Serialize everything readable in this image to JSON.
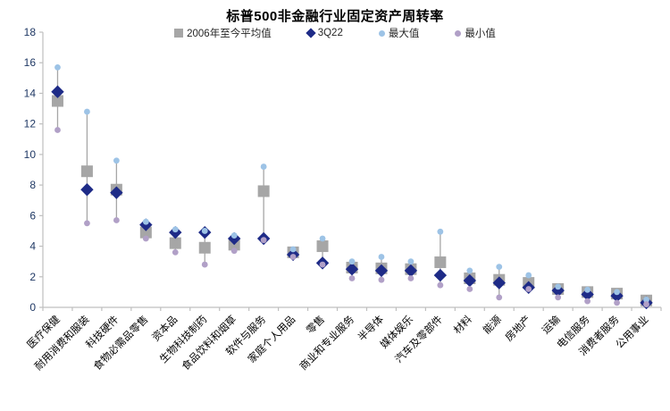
{
  "title": "标普500非金融行业固定资产周转率",
  "legend": [
    {
      "label": "2006年至今平均值",
      "marker": "square",
      "color": "#A6A6A6"
    },
    {
      "label": "3Q22",
      "marker": "diamond",
      "color": "#1E2B87"
    },
    {
      "label": "最大值",
      "marker": "dot",
      "color": "#9DC3E6"
    },
    {
      "label": "最小值",
      "marker": "dot",
      "color": "#B1A0C7"
    }
  ],
  "colors": {
    "mean_square": "#A6A6A6",
    "q3_diamond": "#1E2B87",
    "max_dot": "#9DC3E6",
    "min_dot": "#B1A0C7",
    "whisker": "#A6A6A6",
    "axis": "#BFBFBF",
    "y_tick_label": "#1F3864",
    "x_tick_label": "#000000"
  },
  "chart_data": {
    "type": "scatter",
    "title": "标普500非金融行业固定资产周转率",
    "categories": [
      "医疗保健",
      "耐用消费和服装",
      "科技硬件",
      "食物必需品零售",
      "资本品",
      "生物科技制药",
      "食品饮料和烟草",
      "软件与服务",
      "家庭个人用品",
      "零售",
      "商业和专业服务",
      "半导体",
      "媒体娱乐",
      "汽车及零部件",
      "材料",
      "能源",
      "房地产",
      "运输",
      "电信服务",
      "消费者服务",
      "公用事业"
    ],
    "series": [
      {
        "name": "2006年至今平均值",
        "marker": "square",
        "color": "#A6A6A6",
        "values": [
          13.5,
          8.9,
          7.7,
          4.9,
          4.2,
          3.9,
          4.1,
          7.6,
          3.6,
          4.0,
          2.6,
          2.55,
          2.5,
          2.95,
          1.9,
          1.8,
          1.6,
          1.2,
          1.0,
          0.9,
          0.45
        ]
      },
      {
        "name": "3Q22",
        "marker": "diamond",
        "color": "#1E2B87",
        "values": [
          14.1,
          7.7,
          7.5,
          5.4,
          4.9,
          4.9,
          4.5,
          4.5,
          3.45,
          2.9,
          2.5,
          2.4,
          2.4,
          2.1,
          1.75,
          1.6,
          1.3,
          1.1,
          0.85,
          0.75,
          0.3
        ]
      },
      {
        "name": "最大值",
        "marker": "dot",
        "color": "#9DC3E6",
        "values": [
          15.7,
          12.8,
          9.6,
          5.6,
          5.1,
          5.0,
          4.7,
          9.2,
          3.8,
          4.5,
          3.0,
          3.3,
          3.0,
          4.95,
          2.4,
          2.65,
          2.1,
          1.35,
          1.15,
          1.0,
          0.5
        ]
      },
      {
        "name": "最小值",
        "marker": "dot",
        "color": "#B1A0C7",
        "values": [
          11.6,
          5.5,
          5.7,
          4.5,
          3.6,
          2.8,
          3.7,
          4.4,
          3.3,
          2.8,
          1.9,
          1.8,
          1.9,
          1.45,
          1.2,
          0.65,
          1.2,
          0.65,
          0.4,
          0.3,
          0.2
        ]
      }
    ],
    "ylim": [
      0,
      18
    ],
    "y_ticks": [
      0,
      2,
      4,
      6,
      8,
      10,
      12,
      14,
      16,
      18
    ],
    "xlabel": "",
    "ylabel": "",
    "grid": false,
    "legend_position": "top"
  }
}
